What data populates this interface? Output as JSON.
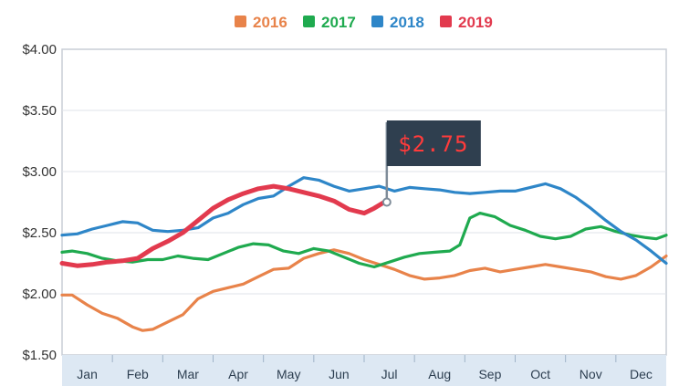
{
  "chart_data": {
    "type": "line",
    "x_categories": [
      "Jan",
      "Feb",
      "Mar",
      "Apr",
      "May",
      "Jun",
      "Jul",
      "Aug",
      "Sep",
      "Oct",
      "Nov",
      "Dec"
    ],
    "y_ticks": [
      "$4.00",
      "$3.50",
      "$3.00",
      "$2.50",
      "$2.00",
      "$1.50"
    ],
    "ylim": [
      1.5,
      4.0
    ],
    "xlim": [
      0.5,
      12.5
    ],
    "grid": "horizontal",
    "legend_placement": "top-center",
    "series": [
      {
        "name": "2016",
        "color": "#e8834a",
        "points": [
          [
            0.5,
            1.99
          ],
          [
            0.7,
            1.99
          ],
          [
            1.0,
            1.91
          ],
          [
            1.3,
            1.84
          ],
          [
            1.6,
            1.8
          ],
          [
            1.9,
            1.73
          ],
          [
            2.1,
            1.7
          ],
          [
            2.3,
            1.71
          ],
          [
            2.6,
            1.77
          ],
          [
            2.9,
            1.83
          ],
          [
            3.2,
            1.96
          ],
          [
            3.5,
            2.02
          ],
          [
            3.8,
            2.05
          ],
          [
            4.1,
            2.08
          ],
          [
            4.4,
            2.14
          ],
          [
            4.7,
            2.2
          ],
          [
            5.0,
            2.21
          ],
          [
            5.3,
            2.29
          ],
          [
            5.6,
            2.33
          ],
          [
            5.9,
            2.36
          ],
          [
            6.2,
            2.33
          ],
          [
            6.5,
            2.28
          ],
          [
            6.8,
            2.24
          ],
          [
            7.1,
            2.2
          ],
          [
            7.4,
            2.15
          ],
          [
            7.7,
            2.12
          ],
          [
            8.0,
            2.13
          ],
          [
            8.3,
            2.15
          ],
          [
            8.6,
            2.19
          ],
          [
            8.9,
            2.21
          ],
          [
            9.2,
            2.18
          ],
          [
            9.5,
            2.2
          ],
          [
            9.8,
            2.22
          ],
          [
            10.1,
            2.24
          ],
          [
            10.4,
            2.22
          ],
          [
            10.7,
            2.2
          ],
          [
            11.0,
            2.18
          ],
          [
            11.3,
            2.14
          ],
          [
            11.6,
            2.12
          ],
          [
            11.9,
            2.15
          ],
          [
            12.2,
            2.22
          ],
          [
            12.5,
            2.31
          ]
        ]
      },
      {
        "name": "2017",
        "color": "#1faa4f",
        "points": [
          [
            0.5,
            2.34
          ],
          [
            0.7,
            2.35
          ],
          [
            1.0,
            2.33
          ],
          [
            1.3,
            2.29
          ],
          [
            1.6,
            2.27
          ],
          [
            1.9,
            2.26
          ],
          [
            2.2,
            2.28
          ],
          [
            2.5,
            2.28
          ],
          [
            2.8,
            2.31
          ],
          [
            3.1,
            2.29
          ],
          [
            3.4,
            2.28
          ],
          [
            3.7,
            2.33
          ],
          [
            4.0,
            2.38
          ],
          [
            4.3,
            2.41
          ],
          [
            4.6,
            2.4
          ],
          [
            4.9,
            2.35
          ],
          [
            5.2,
            2.33
          ],
          [
            5.5,
            2.37
          ],
          [
            5.8,
            2.35
          ],
          [
            6.1,
            2.3
          ],
          [
            6.4,
            2.25
          ],
          [
            6.7,
            2.22
          ],
          [
            7.0,
            2.26
          ],
          [
            7.3,
            2.3
          ],
          [
            7.6,
            2.33
          ],
          [
            7.9,
            2.34
          ],
          [
            8.2,
            2.35
          ],
          [
            8.4,
            2.4
          ],
          [
            8.6,
            2.62
          ],
          [
            8.8,
            2.66
          ],
          [
            9.1,
            2.63
          ],
          [
            9.4,
            2.56
          ],
          [
            9.7,
            2.52
          ],
          [
            10.0,
            2.47
          ],
          [
            10.3,
            2.45
          ],
          [
            10.6,
            2.47
          ],
          [
            10.9,
            2.53
          ],
          [
            11.2,
            2.55
          ],
          [
            11.5,
            2.51
          ],
          [
            11.8,
            2.48
          ],
          [
            12.1,
            2.46
          ],
          [
            12.3,
            2.45
          ],
          [
            12.5,
            2.48
          ]
        ]
      },
      {
        "name": "2018",
        "color": "#2e86c8",
        "points": [
          [
            0.5,
            2.48
          ],
          [
            0.8,
            2.49
          ],
          [
            1.1,
            2.53
          ],
          [
            1.4,
            2.56
          ],
          [
            1.7,
            2.59
          ],
          [
            2.0,
            2.58
          ],
          [
            2.3,
            2.52
          ],
          [
            2.6,
            2.51
          ],
          [
            2.9,
            2.52
          ],
          [
            3.2,
            2.54
          ],
          [
            3.5,
            2.62
          ],
          [
            3.8,
            2.66
          ],
          [
            4.1,
            2.73
          ],
          [
            4.4,
            2.78
          ],
          [
            4.7,
            2.8
          ],
          [
            5.0,
            2.88
          ],
          [
            5.3,
            2.95
          ],
          [
            5.6,
            2.93
          ],
          [
            5.9,
            2.88
          ],
          [
            6.2,
            2.84
          ],
          [
            6.5,
            2.86
          ],
          [
            6.8,
            2.88
          ],
          [
            7.1,
            2.84
          ],
          [
            7.4,
            2.87
          ],
          [
            7.7,
            2.86
          ],
          [
            8.0,
            2.85
          ],
          [
            8.3,
            2.83
          ],
          [
            8.6,
            2.82
          ],
          [
            8.9,
            2.83
          ],
          [
            9.2,
            2.84
          ],
          [
            9.5,
            2.84
          ],
          [
            9.8,
            2.87
          ],
          [
            10.1,
            2.9
          ],
          [
            10.4,
            2.86
          ],
          [
            10.7,
            2.79
          ],
          [
            11.0,
            2.7
          ],
          [
            11.3,
            2.6
          ],
          [
            11.6,
            2.51
          ],
          [
            11.9,
            2.44
          ],
          [
            12.2,
            2.35
          ],
          [
            12.5,
            2.25
          ]
        ]
      },
      {
        "name": "2019",
        "color": "#e23a4e",
        "points": [
          [
            0.5,
            2.25
          ],
          [
            0.8,
            2.23
          ],
          [
            1.1,
            2.24
          ],
          [
            1.4,
            2.26
          ],
          [
            1.7,
            2.27
          ],
          [
            2.0,
            2.29
          ],
          [
            2.3,
            2.37
          ],
          [
            2.6,
            2.43
          ],
          [
            2.9,
            2.5
          ],
          [
            3.2,
            2.6
          ],
          [
            3.5,
            2.7
          ],
          [
            3.8,
            2.77
          ],
          [
            4.1,
            2.82
          ],
          [
            4.4,
            2.86
          ],
          [
            4.7,
            2.88
          ],
          [
            5.0,
            2.86
          ],
          [
            5.3,
            2.83
          ],
          [
            5.6,
            2.8
          ],
          [
            5.9,
            2.76
          ],
          [
            6.2,
            2.69
          ],
          [
            6.5,
            2.66
          ],
          [
            6.7,
            2.7
          ],
          [
            6.9,
            2.75
          ]
        ]
      }
    ],
    "annotation": {
      "label": "$2.75",
      "x": 6.95,
      "y": 2.75
    }
  }
}
